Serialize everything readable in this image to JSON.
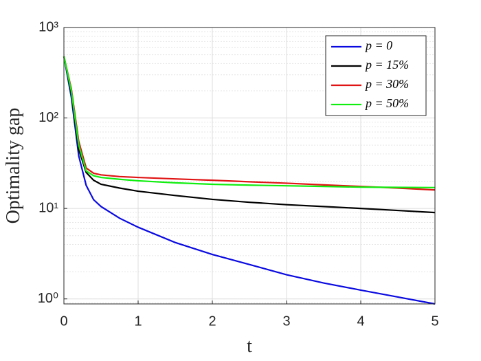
{
  "chart_data": {
    "type": "line",
    "x_label": "t",
    "y_label": "Optimality gap",
    "x": [
      0,
      0.1,
      0.2,
      0.3,
      0.4,
      0.5,
      0.75,
      1,
      1.5,
      2,
      2.5,
      3,
      3.5,
      4,
      4.5,
      5
    ],
    "series": [
      {
        "name": "p = 0",
        "color": "#0a0ae0",
        "values": [
          480,
          170,
          38,
          18,
          12.5,
          10.5,
          7.8,
          6.2,
          4.2,
          3.1,
          2.4,
          1.85,
          1.5,
          1.25,
          1.05,
          0.88
        ]
      },
      {
        "name": "p = 15%",
        "color": "#000000",
        "values": [
          480,
          190,
          45,
          25,
          20.5,
          18.5,
          16.8,
          15.5,
          13.9,
          12.6,
          11.7,
          11,
          10.5,
          10,
          9.5,
          9
        ]
      },
      {
        "name": "p = 30%",
        "color": "#e01414",
        "values": [
          480,
          210,
          55,
          28,
          24.5,
          23.5,
          22.5,
          22,
          21.2,
          20.5,
          19.7,
          19,
          18.2,
          17.5,
          16.8,
          16
        ]
      },
      {
        "name": "p = 50%",
        "color": "#10ee10",
        "values": [
          480,
          200,
          50,
          26,
          23,
          22,
          21,
          20.2,
          19.2,
          18.5,
          18.1,
          17.8,
          17.5,
          17.2,
          17.1,
          17
        ]
      }
    ],
    "xlim": [
      0,
      5
    ],
    "xticks": [
      0,
      1,
      2,
      3,
      4,
      5
    ],
    "ylim": [
      0.88,
      1000
    ],
    "y_scale": "log",
    "yticks": [
      {
        "value": 1,
        "label": "10⁰"
      },
      {
        "value": 10,
        "label": "10¹"
      },
      {
        "value": 100,
        "label": "10²"
      },
      {
        "value": 1000,
        "label": "10³"
      }
    ],
    "grid": true,
    "minor_grid": true,
    "legend_position": "upper-right"
  }
}
